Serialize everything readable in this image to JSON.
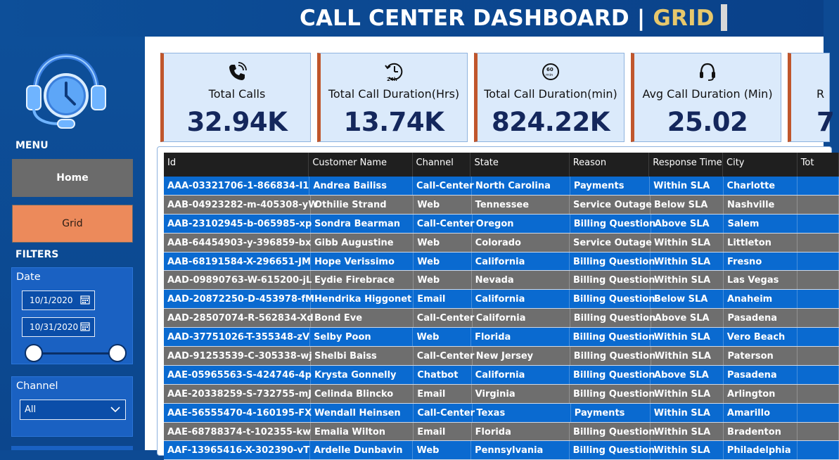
{
  "header": {
    "title_main": "CALL CENTER DASHBOARD | ",
    "title_accent": "GRID"
  },
  "sidebar": {
    "menu_label": "MENU",
    "nav": {
      "home": "Home",
      "grid": "Grid"
    },
    "filters_label": "FILTERS",
    "date": {
      "title": "Date",
      "start": "10/1/2020",
      "end": "10/31/2020"
    },
    "channel": {
      "title": "Channel",
      "selected": "All"
    }
  },
  "kpis": [
    {
      "label": "Total Calls",
      "value": "32.94K",
      "icon": "phone-icon"
    },
    {
      "label": "Total Call Duration(Hrs)",
      "value": "13.74K",
      "icon": "24h-clock-icon"
    },
    {
      "label": "Total Call Duration(min)",
      "value": "824.22K",
      "icon": "60min-clock-icon"
    },
    {
      "label": "Avg Call Duration (Min)",
      "value": "25.02",
      "icon": "headset-icon"
    },
    {
      "label": "R",
      "value": "7",
      "icon": ""
    }
  ],
  "grid": {
    "columns": [
      "Id",
      "Customer Name",
      "Channel",
      "State",
      "Reason",
      "Response Time",
      "City",
      "Tot"
    ],
    "rows": [
      [
        "AAA-03321706-1-866834-I1",
        "Andrea Bailiss",
        "Call-Center",
        "North Carolina",
        "Payments",
        "Within SLA",
        "Charlotte",
        ""
      ],
      [
        "AAB-04923282-m-405308-yW",
        "Othilie Strand",
        "Web",
        "Tennessee",
        "Service Outage",
        "Below SLA",
        "Nashville",
        ""
      ],
      [
        "AAB-23102945-b-065985-xp",
        "Sondra Bearman",
        "Call-Center",
        "Oregon",
        "Billing Question",
        "Above SLA",
        "Salem",
        ""
      ],
      [
        "AAB-64454903-y-396859-bx",
        "Gibb Augustine",
        "Web",
        "Colorado",
        "Service Outage",
        "Within SLA",
        "Littleton",
        ""
      ],
      [
        "AAB-68191584-X-296651-JM",
        "Hope Verissimo",
        "Web",
        "California",
        "Billing Question",
        "Within SLA",
        "Fresno",
        ""
      ],
      [
        "AAD-09890763-W-615200-jL",
        "Eydie Firebrace",
        "Web",
        "Nevada",
        "Billing Question",
        "Within SLA",
        "Las Vegas",
        ""
      ],
      [
        "AAD-20872250-D-453978-fM",
        "Hendrika Higgonet",
        "Email",
        "California",
        "Billing Question",
        "Below SLA",
        "Anaheim",
        ""
      ],
      [
        "AAD-28507074-R-562834-Xd",
        "Bond Eve",
        "Call-Center",
        "California",
        "Billing Question",
        "Above SLA",
        "Pasadena",
        ""
      ],
      [
        "AAD-37751026-T-355348-zV",
        "Selby Poon",
        "Web",
        "Florida",
        "Billing Question",
        "Within SLA",
        "Vero Beach",
        ""
      ],
      [
        "AAD-91253539-C-305338-wj",
        "Shelbi Baiss",
        "Call-Center",
        "New Jersey",
        "Billing Question",
        "Within SLA",
        "Paterson",
        ""
      ],
      [
        "AAE-05965563-S-424746-4p",
        "Krysta Gonnelly",
        "Chatbot",
        "California",
        "Billing Question",
        "Above SLA",
        "Pasadena",
        ""
      ],
      [
        "AAE-20338259-S-732755-mJ",
        "Celinda Blincko",
        "Email",
        "Virginia",
        "Billing Question",
        "Within SLA",
        "Arlington",
        ""
      ],
      [
        "AAE-56555470-4-160195-FX",
        "Wendall Heinsen",
        "Call-Center",
        "Texas",
        "Payments",
        "Within SLA",
        "Amarillo",
        ""
      ],
      [
        "AAE-68788374-t-102355-kw",
        "Emalia Wilton",
        "Email",
        "Florida",
        "Billing Question",
        "Within SLA",
        "Bradenton",
        ""
      ],
      [
        "AAF-13965416-X-302390-vT",
        "Ardelle Dunbavin",
        "Web",
        "Pennsylvania",
        "Billing Question",
        "Within SLA",
        "Philadelphia",
        ""
      ]
    ]
  },
  "colors": {
    "row_blue": "#0a6ad0",
    "row_gray": "#6e6e6e",
    "accent": "#e7c86c",
    "kpi_border": "#c0562c"
  }
}
